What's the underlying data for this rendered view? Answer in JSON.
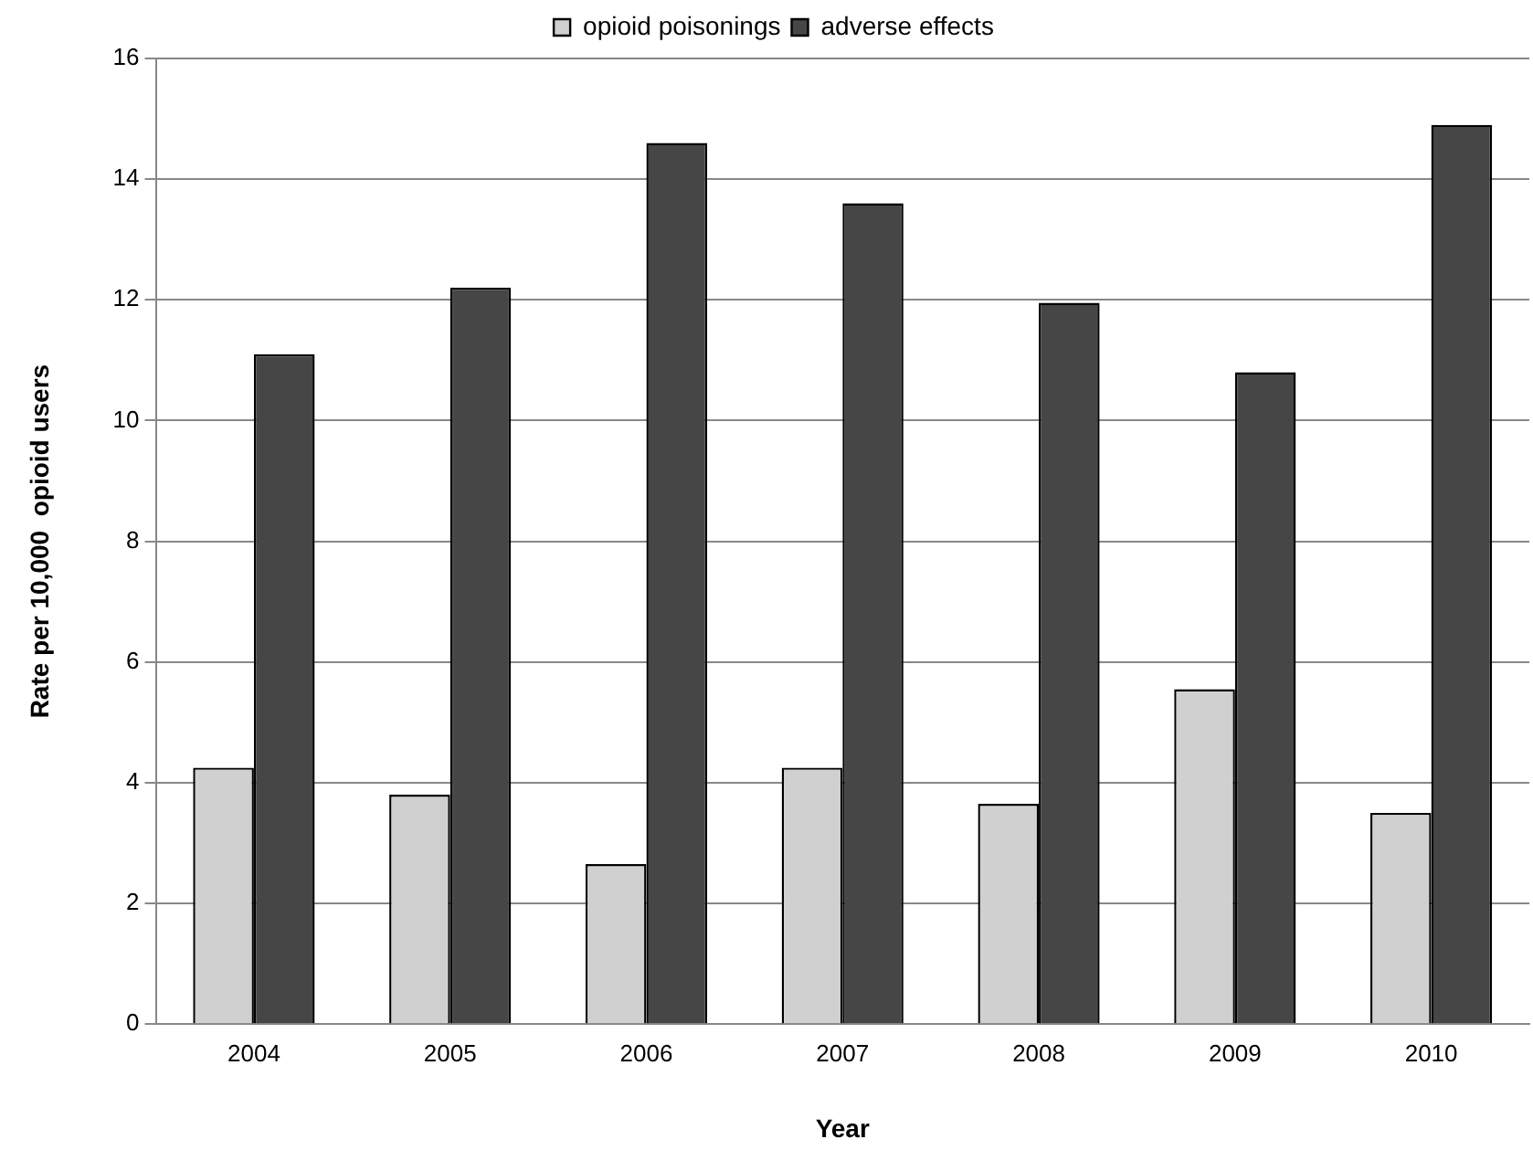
{
  "chart_data": {
    "type": "bar",
    "xlabel": "Year",
    "ylabel": "Rate per 10,000  opioid users",
    "categories": [
      "2004",
      "2005",
      "2006",
      "2007",
      "2008",
      "2009",
      "2010"
    ],
    "series": [
      {
        "name": "opioid poisonings",
        "color": "#d0d0d0",
        "values": [
          4.25,
          3.8,
          2.65,
          4.25,
          3.65,
          5.55,
          3.5
        ]
      },
      {
        "name": "adverse effects",
        "color": "#464646",
        "values": [
          11.1,
          12.2,
          14.6,
          13.6,
          11.95,
          10.8,
          14.9
        ]
      }
    ],
    "ylim": [
      0,
      16
    ],
    "yticks": [
      0,
      2,
      4,
      6,
      8,
      10,
      12,
      14,
      16
    ],
    "grid": "y",
    "legend": "top"
  }
}
